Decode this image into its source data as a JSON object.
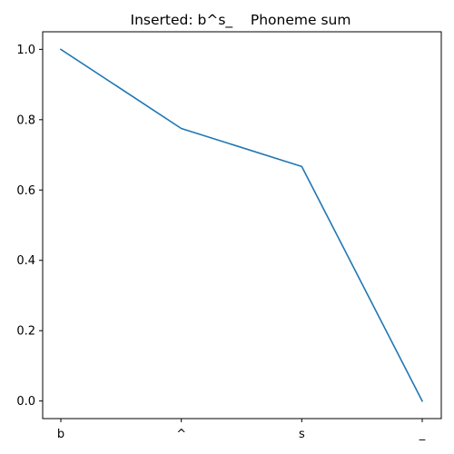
{
  "chart_data": {
    "type": "line",
    "title": "Inserted: b^s_    Phoneme sum",
    "xlabel": "",
    "ylabel": "",
    "categories": [
      "b",
      "^",
      "s",
      "_"
    ],
    "series": [
      {
        "values": [
          1.0,
          0.775,
          0.667,
          0.0
        ],
        "color": "#1f77b4"
      }
    ],
    "ylim": [
      -0.05,
      1.05
    ],
    "yticks": [
      0.0,
      0.2,
      0.4,
      0.6,
      0.8,
      1.0
    ],
    "ytick_labels": [
      "0.0",
      "0.2",
      "0.4",
      "0.6",
      "0.8",
      "1.0"
    ],
    "grid": false,
    "legend": "none"
  }
}
